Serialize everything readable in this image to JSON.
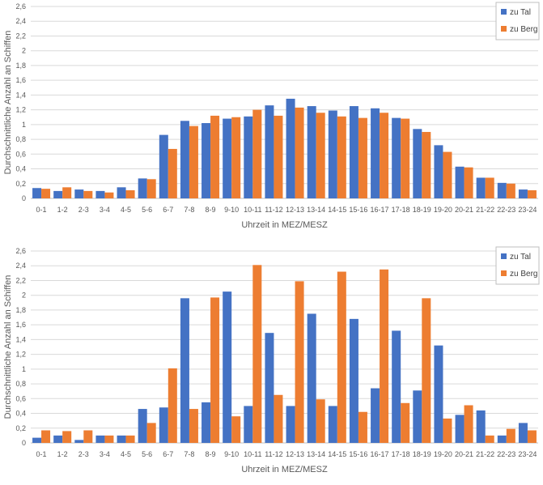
{
  "colors": {
    "zu_tal": "#4472C4",
    "zu_berg": "#ED7D31"
  },
  "chart_data": [
    {
      "type": "bar",
      "ylabel": "Durchschnittliche Anzahl an Schiffen",
      "xlabel": "Uhrzeit in MEZ/MESZ",
      "ylim": [
        0,
        2.6
      ],
      "yticks": [
        "0",
        "0,2",
        "0,4",
        "0,6",
        "0,8",
        "1",
        "1,2",
        "1,4",
        "1,6",
        "1,8",
        "2",
        "2,2",
        "2,4",
        "2,6"
      ],
      "legend_position": "top-right",
      "grid": true,
      "categories": [
        "0-1",
        "1-2",
        "2-3",
        "3-4",
        "4-5",
        "5-6",
        "6-7",
        "7-8",
        "8-9",
        "9-10",
        "10-11",
        "11-12",
        "12-13",
        "13-14",
        "14-15",
        "15-16",
        "16-17",
        "17-18",
        "18-19",
        "19-20",
        "20-21",
        "21-22",
        "22-23",
        "23-24"
      ],
      "series": [
        {
          "name": "zu Tal",
          "color": "#4472C4",
          "values": [
            0.14,
            0.1,
            0.12,
            0.1,
            0.15,
            0.27,
            0.86,
            1.05,
            1.02,
            1.08,
            1.11,
            1.26,
            1.35,
            1.25,
            1.19,
            1.25,
            1.22,
            1.09,
            0.94,
            0.72,
            0.43,
            0.28,
            0.21,
            0.12
          ]
        },
        {
          "name": "zu Berg",
          "color": "#ED7D31",
          "values": [
            0.13,
            0.15,
            0.1,
            0.08,
            0.11,
            0.26,
            0.67,
            0.98,
            1.12,
            1.1,
            1.2,
            1.12,
            1.23,
            1.16,
            1.11,
            1.09,
            1.16,
            1.08,
            0.9,
            0.63,
            0.42,
            0.28,
            0.2,
            0.11
          ]
        }
      ]
    },
    {
      "type": "bar",
      "ylabel": "Durchschnittliche Anzahl an Schiffen",
      "xlabel": "Uhrzeit in MEZ/MESZ",
      "ylim": [
        0,
        2.6
      ],
      "yticks": [
        "0",
        "0,2",
        "0,4",
        "0,6",
        "0,8",
        "1",
        "1,2",
        "1,4",
        "1,6",
        "1,8",
        "2",
        "2,2",
        "2,4",
        "2,6"
      ],
      "legend_position": "top-right",
      "grid": true,
      "categories": [
        "0-1",
        "1-2",
        "2-3",
        "3-4",
        "4-5",
        "5-6",
        "6-7",
        "7-8",
        "8-9",
        "9-10",
        "10-11",
        "11-12",
        "12-13",
        "13-14",
        "14-15",
        "15-16",
        "16-17",
        "17-18",
        "18-19",
        "19-20",
        "20-21",
        "21-22",
        "22-23",
        "23-24"
      ],
      "series": [
        {
          "name": "zu Tal",
          "color": "#4472C4",
          "values": [
            0.07,
            0.1,
            0.04,
            0.1,
            0.1,
            0.46,
            0.48,
            1.96,
            0.55,
            2.05,
            0.5,
            1.49,
            0.5,
            1.75,
            0.5,
            1.68,
            0.74,
            1.52,
            0.71,
            1.32,
            0.38,
            0.44,
            0.1,
            0.27
          ]
        },
        {
          "name": "zu Berg",
          "color": "#ED7D31",
          "values": [
            0.17,
            0.16,
            0.17,
            0.1,
            0.1,
            0.27,
            1.01,
            0.46,
            1.97,
            0.36,
            2.41,
            0.65,
            2.19,
            0.59,
            2.32,
            0.42,
            2.35,
            0.54,
            1.96,
            0.33,
            0.51,
            0.1,
            0.19,
            0.17
          ]
        }
      ]
    }
  ]
}
